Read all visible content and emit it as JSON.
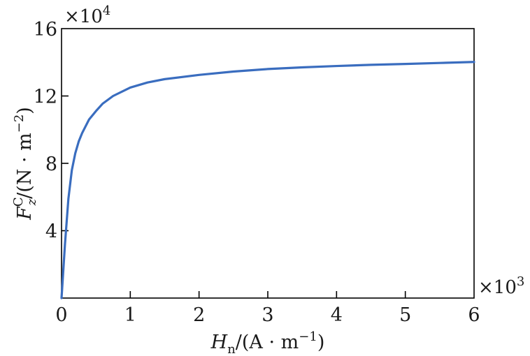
{
  "chart_data": {
    "type": "line",
    "title": "",
    "xlabel": {
      "symbol": "H",
      "subscript": "n",
      "unit_prefix": "/(A · m",
      "unit_exp": "−1",
      "unit_suffix": ")"
    },
    "ylabel": {
      "symbol": "F",
      "superscript": "C",
      "subscript": "z",
      "unit_prefix": "/(N · m",
      "unit_exp": "−2",
      "unit_suffix": ")"
    },
    "x_multiplier": {
      "base": "×10",
      "exp": "3"
    },
    "y_multiplier": {
      "base": "×10",
      "exp": "4"
    },
    "xlim": [
      0,
      6
    ],
    "ylim": [
      0,
      16
    ],
    "x_ticks": [
      0,
      1,
      2,
      3,
      4,
      5,
      6
    ],
    "x_tick_labels": [
      "0",
      "1",
      "2",
      "3",
      "4",
      "5",
      "6"
    ],
    "y_ticks": [
      4,
      8,
      12,
      16
    ],
    "y_tick_labels": [
      "4",
      "8",
      "12",
      "16"
    ],
    "grid": false,
    "series": [
      {
        "color": "#3a6dbf",
        "x": [
          0,
          0.05,
          0.1,
          0.15,
          0.2,
          0.25,
          0.3,
          0.4,
          0.5,
          0.6,
          0.75,
          1.0,
          1.25,
          1.5,
          2.0,
          2.5,
          3.0,
          3.5,
          4.0,
          4.5,
          5.0,
          5.5,
          6.0
        ],
        "y": [
          0,
          3.2,
          5.9,
          7.6,
          8.6,
          9.3,
          9.8,
          10.6,
          11.1,
          11.55,
          12.0,
          12.5,
          12.8,
          13.0,
          13.25,
          13.45,
          13.6,
          13.7,
          13.78,
          13.85,
          13.9,
          13.96,
          14.02
        ]
      }
    ]
  }
}
